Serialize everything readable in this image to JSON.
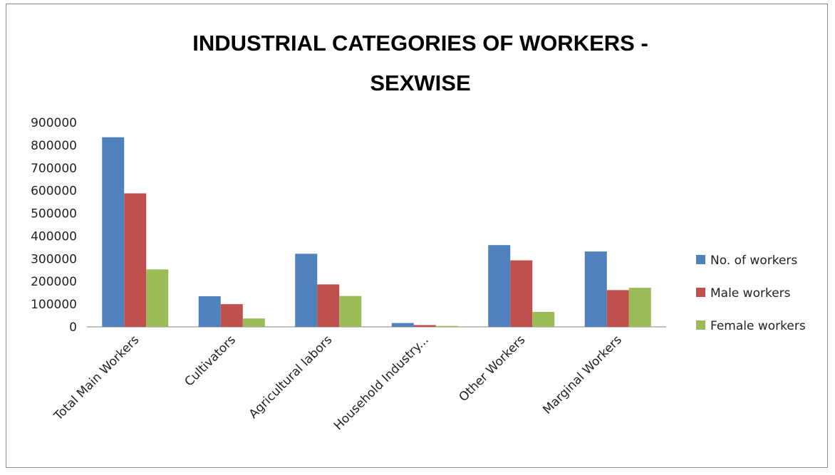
{
  "chart_data": {
    "type": "bar",
    "title_lines": [
      "INDUSTRIAL CATEGORIES OF WORKERS -",
      "SEXWISE"
    ],
    "categories": [
      "Total Main Workers",
      "Cultivators",
      "Agricultural labors",
      "Household Industry...",
      "Other Workers",
      "Marginal Workers"
    ],
    "series": [
      {
        "name": "No. of workers",
        "color": "#4f81bd",
        "values": [
          835000,
          135000,
          322000,
          17000,
          360000,
          332000
        ]
      },
      {
        "name": "Male workers",
        "color": "#c0504d",
        "values": [
          588000,
          100000,
          187000,
          8000,
          293000,
          162000
        ]
      },
      {
        "name": "Female workers",
        "color": "#9bbb59",
        "values": [
          253000,
          37000,
          136000,
          4000,
          66000,
          172000
        ]
      }
    ],
    "ylim": [
      0,
      900000
    ],
    "yticks": [
      "0",
      "100000",
      "200000",
      "300000",
      "400000",
      "500000",
      "600000",
      "700000",
      "800000",
      "900000"
    ],
    "grid": false,
    "legend_position": "right"
  }
}
